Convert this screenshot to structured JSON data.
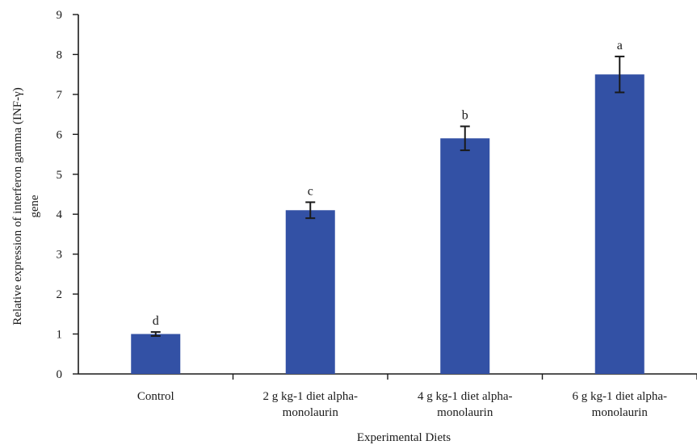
{
  "chart_data": {
    "type": "bar",
    "title": "",
    "xlabel": "Experimental Diets",
    "ylabel_lines": [
      "Relative expression of interferon gamma (INF-γ)",
      "gene"
    ],
    "ylim": [
      0,
      9
    ],
    "yticks": [
      0,
      1,
      2,
      3,
      4,
      5,
      6,
      7,
      8,
      9
    ],
    "grid": false,
    "bar_color": "#3351A5",
    "categories": [
      [
        "Control"
      ],
      [
        "2 g kg-1 diet alpha-",
        "monolaurin"
      ],
      [
        "4 g kg-1 diet alpha-",
        "monolaurin"
      ],
      [
        "6 g kg-1 diet alpha-",
        "monolaurin"
      ]
    ],
    "values": [
      1.0,
      4.1,
      5.9,
      7.5
    ],
    "errors": [
      0.05,
      0.2,
      0.3,
      0.45
    ],
    "significance_letters": [
      "d",
      "c",
      "b",
      "a"
    ]
  }
}
